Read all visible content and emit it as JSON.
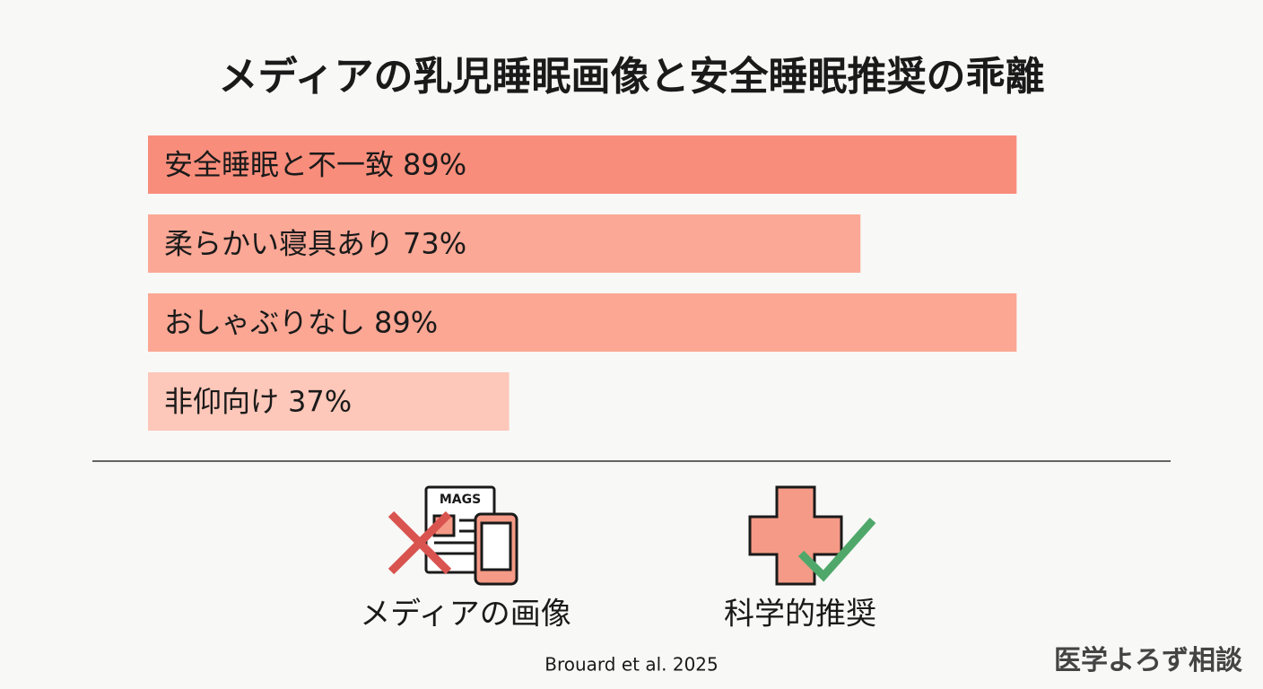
{
  "chart_data": {
    "type": "bar",
    "orientation": "horizontal",
    "title": "メディアの乳児睡眠画像と安全睡眠推奨の乖離",
    "categories": [
      "安全睡眠と不一致",
      "柔らかい寝具あり",
      "おしゃぶりなし",
      "非仰向け"
    ],
    "values": [
      89,
      73,
      89,
      37
    ],
    "value_labels": [
      "89%",
      "73%",
      "89%",
      "37%"
    ],
    "colors": [
      "#f98d7b",
      "#fba896",
      "#fba794",
      "#fdc7b9"
    ],
    "xlim": [
      0,
      100
    ]
  },
  "comparison": {
    "icon_text": "MAGS",
    "left_label": "メディアの画像",
    "right_label": "科学的推奨"
  },
  "source": "Brouard et al. 2025",
  "watermark": "医学よろず相談"
}
